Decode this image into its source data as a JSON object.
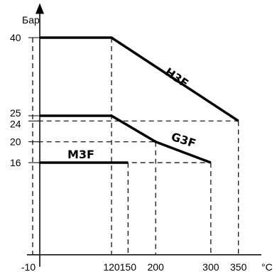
{
  "chart_data": {
    "type": "line",
    "title": "",
    "xlabel": "°C",
    "ylabel": "Бар",
    "xlim": [
      -15,
      380
    ],
    "ylim": [
      -3,
      44
    ],
    "x_ticks": [
      -10,
      120,
      150,
      200,
      300,
      350
    ],
    "x_tick_labels": [
      "-10",
      "120",
      "150",
      "200",
      "300",
      "350"
    ],
    "y_ticks": [
      16,
      20,
      24,
      25,
      40
    ],
    "y_tick_labels": [
      "16",
      "20",
      "24",
      "25",
      "40"
    ],
    "grid": false,
    "series": [
      {
        "name": "H3F",
        "x": [
          -10,
          120,
          350
        ],
        "y": [
          40,
          40,
          24
        ]
      },
      {
        "name": "G3F",
        "x": [
          -10,
          120,
          200,
          300
        ],
        "y": [
          25,
          25,
          20,
          16
        ]
      },
      {
        "name": "M3F",
        "x": [
          -10,
          150
        ],
        "y": [
          16,
          16
        ]
      }
    ]
  }
}
